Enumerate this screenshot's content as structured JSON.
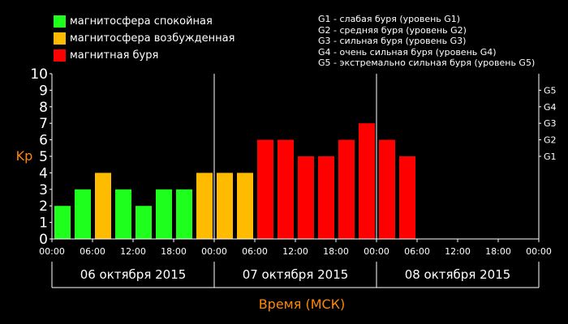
{
  "legend": [
    {
      "label": "магнитосфера спокойная",
      "color": "#1eff1e"
    },
    {
      "label": "магнитосфера возбужденная",
      "color": "#ffbb00"
    },
    {
      "label": "магнитная буря",
      "color": "#ff0000"
    }
  ],
  "storm_scale": [
    "G1 - слабая буря (уровень G1)",
    "G2 - средняя буря (уровень G2)",
    "G3 - сильная буря (уровень G3)",
    "G4 - очень сильная буря (уровень G4)",
    "G5 - экстремально сильная буря (уровень G5)"
  ],
  "chart_data": {
    "type": "bar",
    "ylabel": "Kp",
    "xlabel": "Время (МСК)",
    "ylim": [
      0,
      10
    ],
    "y_ticks": [
      "0",
      "1",
      "2",
      "3",
      "4",
      "5",
      "6",
      "7",
      "8",
      "9",
      "10"
    ],
    "right_ticks": [
      {
        "label": "G1",
        "value": 5
      },
      {
        "label": "G2",
        "value": 6
      },
      {
        "label": "G3",
        "value": 7
      },
      {
        "label": "G4",
        "value": 8
      },
      {
        "label": "G5",
        "value": 9
      }
    ],
    "x_ticks": [
      "00:00",
      "06:00",
      "12:00",
      "18:00",
      "00:00",
      "06:00",
      "12:00",
      "18:00",
      "00:00",
      "06:00",
      "12:00",
      "18:00",
      "00:00"
    ],
    "days": [
      "06 октября 2015",
      "07 октября 2015",
      "08 октября 2015"
    ],
    "slots": 24,
    "values": [
      2,
      3,
      4,
      3,
      2,
      3,
      3,
      4,
      4,
      4,
      6,
      6,
      5,
      5,
      6,
      7,
      6,
      5
    ],
    "colors": {
      "quiet": "#1eff1e",
      "active": "#ffbb00",
      "storm": "#ff0000"
    },
    "accent_color": "#ff8800"
  }
}
